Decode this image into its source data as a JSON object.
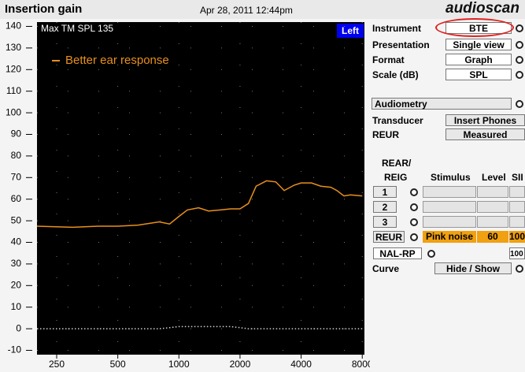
{
  "header": {
    "title": "Insertion gain",
    "date": "Apr 28, 2011 12:44pm",
    "logo": "audioscan"
  },
  "chart_data": {
    "type": "line",
    "xscale": "log",
    "x": [
      200,
      300,
      400,
      500,
      630,
      800,
      900,
      1000,
      1100,
      1250,
      1400,
      1600,
      1800,
      2000,
      2200,
      2400,
      2700,
      3000,
      3300,
      3700,
      4000,
      4500,
      5000,
      5600,
      6000,
      6500,
      7000,
      8000
    ],
    "series": [
      {
        "name": "Better ear response",
        "color": "#e8901c",
        "values": [
          47.5,
          47,
          47.5,
          47.5,
          48,
          49.5,
          48.5,
          52,
          55,
          56,
          54.5,
          55,
          55.5,
          55.5,
          58,
          66,
          68.5,
          68,
          64,
          66.5,
          67.5,
          67.5,
          66,
          65.5,
          64,
          61.5,
          62,
          61.5
        ]
      },
      {
        "color": "#d0d0d0",
        "style": "dotted",
        "values": [
          0,
          0,
          0,
          0,
          0,
          0,
          0.5,
          1,
          1,
          1,
          1,
          1,
          1,
          0.5,
          0,
          0,
          0,
          0,
          0,
          0,
          0,
          0,
          0,
          0,
          0,
          0,
          0,
          0
        ]
      }
    ],
    "xlim": [
      200,
      8200
    ],
    "ylim": [
      -12,
      142
    ],
    "xticks": [
      250,
      500,
      1000,
      2000,
      4000,
      8000
    ],
    "yticks": [
      -10,
      0,
      10,
      20,
      30,
      40,
      50,
      60,
      70,
      80,
      90,
      100,
      110,
      120,
      130,
      140
    ],
    "grid": true,
    "annotation": "Max TM SPL 135",
    "ear": "Left"
  },
  "panel": {
    "instrument": {
      "label": "Instrument",
      "value": "BTE"
    },
    "presentation": {
      "label": "Presentation",
      "value": "Single view"
    },
    "format": {
      "label": "Format",
      "value": "Graph"
    },
    "scale": {
      "label": "Scale (dB)",
      "value": "SPL"
    },
    "audiometry": "Audiometry",
    "transducer": {
      "label": "Transducer",
      "value": "Insert Phones"
    },
    "reur": {
      "label": "REUR",
      "value": "Measured"
    },
    "table": {
      "header": [
        "REAR/",
        "REIG",
        "Stimulus",
        "Level",
        "SII"
      ],
      "rows": [
        "1",
        "2",
        "3"
      ],
      "reur_row": {
        "label": "REUR",
        "stimulus": "Pink noise",
        "level": "60",
        "sii": "100"
      },
      "target": {
        "label": "NAL-RP",
        "sii": "100"
      }
    },
    "curve": {
      "label": "Curve",
      "value": "Hide / Show"
    }
  }
}
